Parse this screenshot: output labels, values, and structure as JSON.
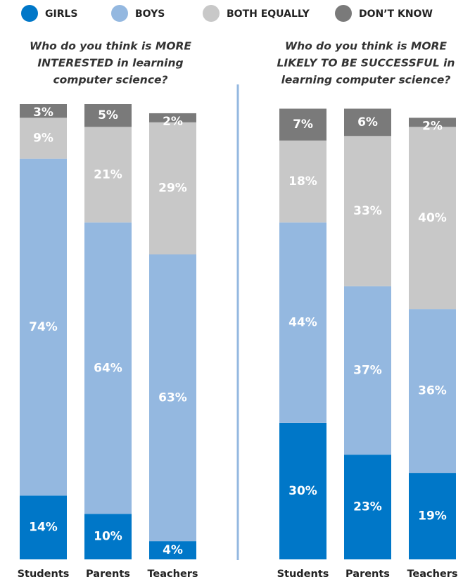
{
  "chart_data": [
    {
      "type": "bar",
      "stacked": true,
      "title": [
        "Who do you think is MORE",
        "INTERESTED in learning",
        "computer science?"
      ],
      "categories": [
        "Students",
        "Parents",
        "Teachers"
      ],
      "series": [
        {
          "name": "GIRLS",
          "color": "#0077c8",
          "values": [
            14,
            10,
            4
          ],
          "value_labels": [
            "14%",
            "10%",
            "4%"
          ]
        },
        {
          "name": "BOYS",
          "color": "#94b8e0",
          "values": [
            74,
            64,
            63
          ],
          "value_labels": [
            "74%",
            "64%",
            "63%"
          ]
        },
        {
          "name": "BOTH EQUALLY",
          "color": "#c8c8c8",
          "values": [
            9,
            21,
            29
          ],
          "value_labels": [
            "9%",
            "21%",
            "29%"
          ]
        },
        {
          "name": "DON’T KNOW",
          "color": "#7a7a7a",
          "values": [
            3,
            5,
            2
          ],
          "value_labels": [
            "3%",
            "5%",
            "2%"
          ]
        }
      ]
    },
    {
      "type": "bar",
      "stacked": true,
      "title": [
        "Who do you think is MORE",
        "LIKELY TO BE SUCCESSFUL in",
        "learning computer science?"
      ],
      "categories": [
        "Students",
        "Parents",
        "Teachers"
      ],
      "series": [
        {
          "values": [
            30,
            23,
            19
          ],
          "value_labels": [
            "30%",
            "23%",
            "19%"
          ]
        },
        {
          "values": [
            44,
            37,
            36
          ],
          "value_labels": [
            "44%",
            "37%",
            "36%"
          ]
        },
        {
          "values": [
            18,
            33,
            40
          ],
          "value_labels": [
            "18%",
            "33%",
            "40%"
          ]
        },
        {
          "values": [
            7,
            6,
            2
          ],
          "value_labels": [
            "7%",
            "6%",
            "2%"
          ]
        }
      ]
    }
  ]
}
